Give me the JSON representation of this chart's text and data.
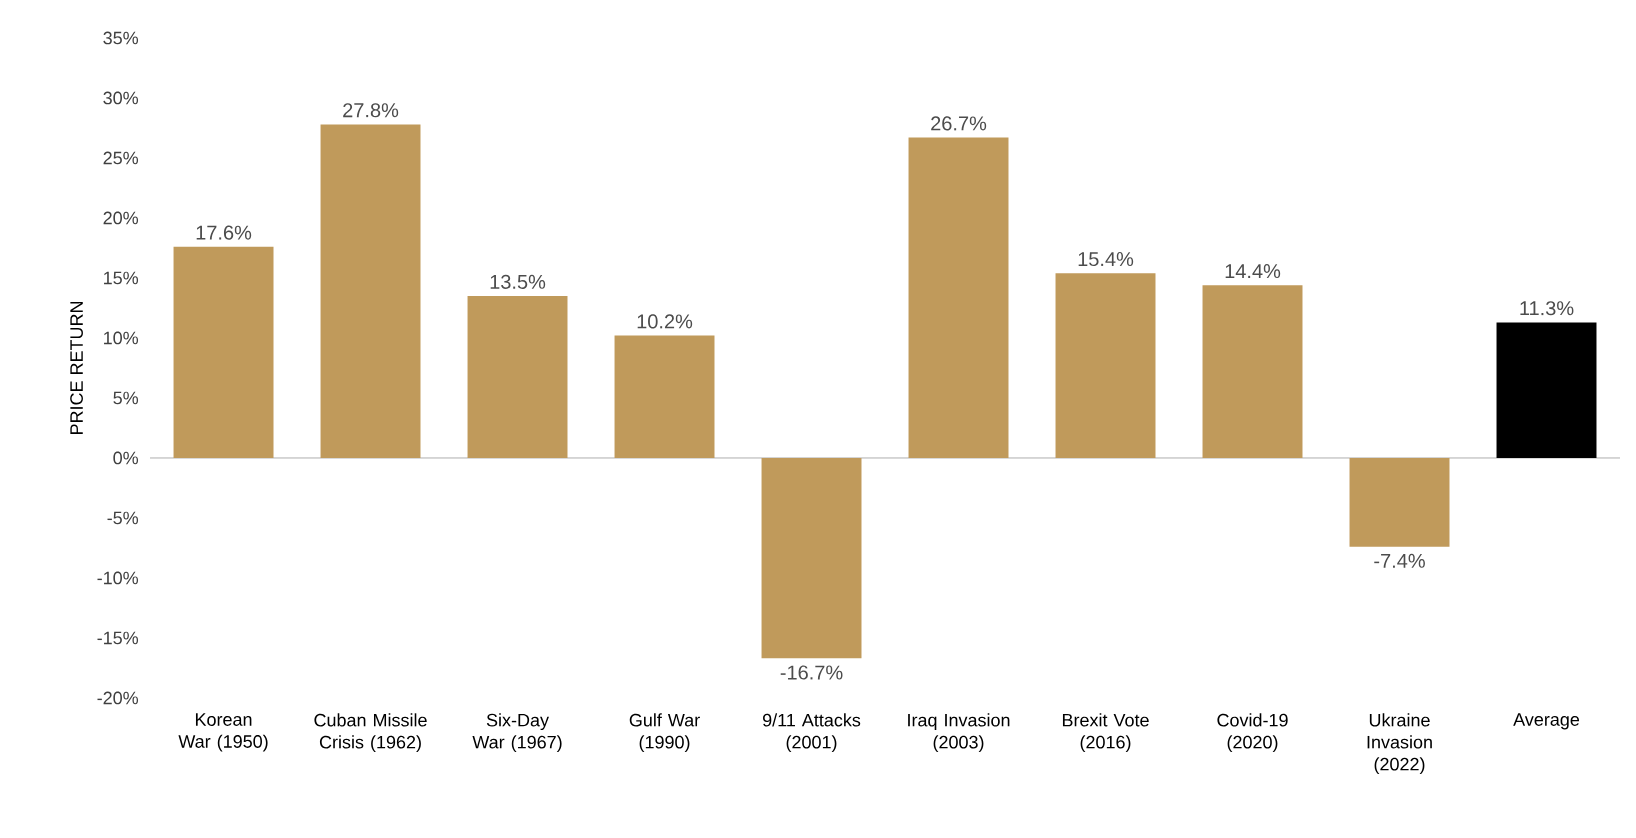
{
  "chart_data": {
    "type": "bar",
    "ylabel": "PRICE RETURN",
    "categories": [
      "Korean War (1950)",
      "Cuban Missile Crisis (1962)",
      "Six-Day War (1967)",
      "Gulf War (1990)",
      "9/11 Attacks (2001)",
      "Iraq Invasion (2003)",
      "Brexit Vote (2016)",
      "Covid-19 (2020)",
      "Ukraine Invasion (2022)",
      "Average"
    ],
    "values": [
      17.6,
      27.8,
      13.5,
      10.2,
      -16.7,
      26.7,
      15.4,
      14.4,
      -7.4,
      11.3
    ],
    "colors": [
      "#c09a5b",
      "#c09a5b",
      "#c09a5b",
      "#c09a5b",
      "#c09a5b",
      "#c09a5b",
      "#c09a5b",
      "#c09a5b",
      "#c09a5b",
      "#000000"
    ],
    "value_labels": [
      "17.6%",
      "27.8%",
      "13.5%",
      "10.2%",
      "-16.7%",
      "26.7%",
      "15.4%",
      "14.4%",
      "-7.4%",
      "11.3%"
    ],
    "ylim": [
      -20,
      35
    ],
    "yticks": [
      {
        "value": -20,
        "label": "-20%"
      },
      {
        "value": -15,
        "label": "-15%"
      },
      {
        "value": -10,
        "label": "-10%"
      },
      {
        "value": -5,
        "label": "-5%"
      },
      {
        "value": 0,
        "label": "0%"
      },
      {
        "value": 5,
        "label": "5%"
      },
      {
        "value": 10,
        "label": "10%"
      },
      {
        "value": 15,
        "label": "15%"
      },
      {
        "value": 20,
        "label": "20%"
      },
      {
        "value": 25,
        "label": "25%"
      },
      {
        "value": 30,
        "label": "30%"
      },
      {
        "value": 35,
        "label": "35%"
      }
    ],
    "stacked": false
  }
}
